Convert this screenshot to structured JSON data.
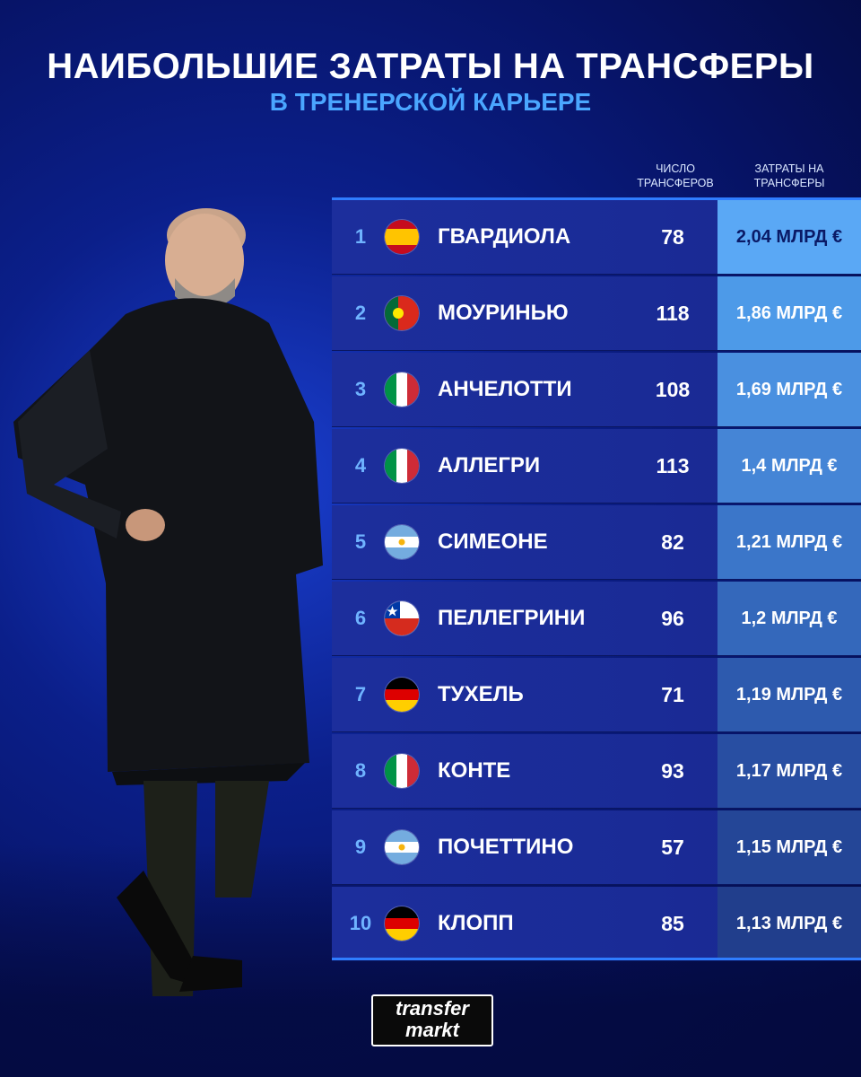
{
  "header": {
    "title": "НАИБОЛЬШИЕ ЗАТРАТЫ НА ТРАНСФЕРЫ",
    "subtitle": "В ТРЕНЕРСКОЙ КАРЬЕРЕ"
  },
  "columns": {
    "count_line1": "ЧИСЛО",
    "count_line2": "ТРАНСФЕРОВ",
    "cost_line1": "ЗАТРАТЫ НА",
    "cost_line2": "ТРАНСФЕРЫ"
  },
  "rows": [
    {
      "rank": "1",
      "flag": "spain-flag-icon",
      "name": "ГВАРДИОЛА",
      "count": "78",
      "cost": "2,04 МЛРД €"
    },
    {
      "rank": "2",
      "flag": "portugal-flag-icon",
      "name": "МОУРИНЬЮ",
      "count": "118",
      "cost": "1,86 МЛРД €"
    },
    {
      "rank": "3",
      "flag": "italy-flag-icon",
      "name": "АНЧЕЛОТТИ",
      "count": "108",
      "cost": "1,69 МЛРД €"
    },
    {
      "rank": "4",
      "flag": "italy-flag-icon",
      "name": "АЛЛЕГРИ",
      "count": "113",
      "cost": "1,4 МЛРД €"
    },
    {
      "rank": "5",
      "flag": "argentina-flag-icon",
      "name": "СИМЕОНЕ",
      "count": "82",
      "cost": "1,21 МЛРД €"
    },
    {
      "rank": "6",
      "flag": "chile-flag-icon",
      "name": "ПЕЛЛЕГРИНИ",
      "count": "96",
      "cost": "1,2 МЛРД €"
    },
    {
      "rank": "7",
      "flag": "germany-flag-icon",
      "name": "ТУХЕЛЬ",
      "count": "71",
      "cost": "1,19 МЛРД €"
    },
    {
      "rank": "8",
      "flag": "italy-flag-icon",
      "name": "КОНТЕ",
      "count": "93",
      "cost": "1,17 МЛРД €"
    },
    {
      "rank": "9",
      "flag": "argentina-flag-icon",
      "name": "ПОЧЕТТИНО",
      "count": "57",
      "cost": "1,15 МЛРД €"
    },
    {
      "rank": "10",
      "flag": "germany-flag-icon",
      "name": "КЛОПП",
      "count": "85",
      "cost": "1,13 МЛРД €"
    }
  ],
  "logo": {
    "line1": "transfer",
    "line2": "markt"
  },
  "colors": {
    "background": "#0b1f8a",
    "accent": "#4aa6ff",
    "row": "#1c2e9c"
  }
}
